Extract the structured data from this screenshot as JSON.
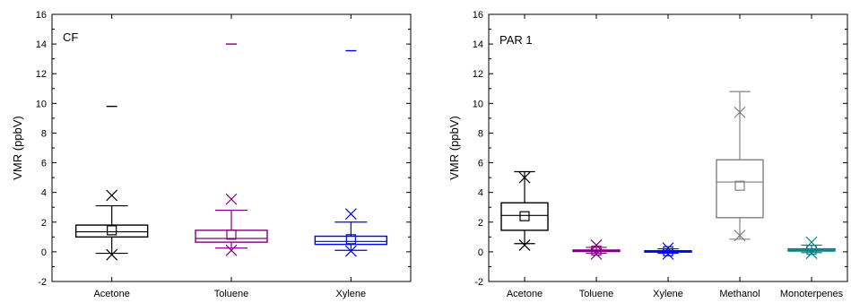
{
  "chart_data": [
    {
      "type": "box",
      "panel_label": "CF",
      "ylabel": "VMR (ppbV)",
      "ylim": [
        -2,
        16
      ],
      "yticks": [
        -2,
        0,
        2,
        4,
        6,
        8,
        10,
        12,
        14,
        16
      ],
      "grid": false,
      "categories": [
        "Acetone",
        "Toluene",
        "Xylene"
      ],
      "series": [
        {
          "category": "Acetone",
          "color": "#000000",
          "q1": 1.0,
          "median": 1.35,
          "q3": 1.8,
          "mean": 1.45,
          "whisker_low": -0.1,
          "whisker_high": 3.1,
          "min": -0.2,
          "max": 3.8,
          "outliers": [
            9.8
          ]
        },
        {
          "category": "Toluene",
          "color": "#800080",
          "q1": 0.65,
          "median": 0.9,
          "q3": 1.45,
          "mean": 1.15,
          "whisker_low": 0.25,
          "whisker_high": 2.8,
          "min": 0.1,
          "max": 3.55,
          "outliers": [
            14.0
          ]
        },
        {
          "category": "Xylene",
          "color": "#0000ff",
          "q1": 0.5,
          "median": 0.7,
          "q3": 1.05,
          "mean": 0.85,
          "whisker_low": 0.1,
          "whisker_high": 2.0,
          "min": 0.05,
          "max": 2.55,
          "outliers": [
            13.55
          ]
        }
      ]
    },
    {
      "type": "box",
      "panel_label": "PAR 1",
      "ylabel": "VMR (ppbV)",
      "ylim": [
        -2,
        16
      ],
      "yticks": [
        -2,
        0,
        2,
        4,
        6,
        8,
        10,
        12,
        14,
        16
      ],
      "grid": false,
      "categories": [
        "Acetone",
        "Toluene",
        "Xylene",
        "Methanol",
        "Monoterpenes"
      ],
      "series": [
        {
          "category": "Acetone",
          "color": "#000000",
          "q1": 1.45,
          "median": 2.45,
          "q3": 3.3,
          "mean": 2.4,
          "whisker_low": 0.55,
          "whisker_high": 5.4,
          "min": 0.45,
          "max": 5.0,
          "outliers": []
        },
        {
          "category": "Toluene",
          "color": "#800080",
          "q1": 0.02,
          "median": 0.07,
          "q3": 0.12,
          "mean": 0.08,
          "whisker_low": -0.1,
          "whisker_high": 0.3,
          "min": -0.15,
          "max": 0.45,
          "outliers": []
        },
        {
          "category": "Xylene",
          "color": "#0000ff",
          "q1": 0.0,
          "median": 0.03,
          "q3": 0.07,
          "mean": 0.04,
          "whisker_low": -0.1,
          "whisker_high": 0.2,
          "min": -0.15,
          "max": 0.25,
          "outliers": []
        },
        {
          "category": "Methanol",
          "color": "#808080",
          "q1": 2.3,
          "median": 4.7,
          "q3": 6.2,
          "mean": 4.45,
          "whisker_low": 0.85,
          "whisker_high": 10.8,
          "min": 1.1,
          "max": 9.4,
          "outliers": []
        },
        {
          "category": "Monoterpenes",
          "color": "#008080",
          "q1": 0.05,
          "median": 0.12,
          "q3": 0.2,
          "mean": 0.13,
          "whisker_low": -0.05,
          "whisker_high": 0.45,
          "min": -0.1,
          "max": 0.65,
          "outliers": []
        }
      ]
    }
  ]
}
